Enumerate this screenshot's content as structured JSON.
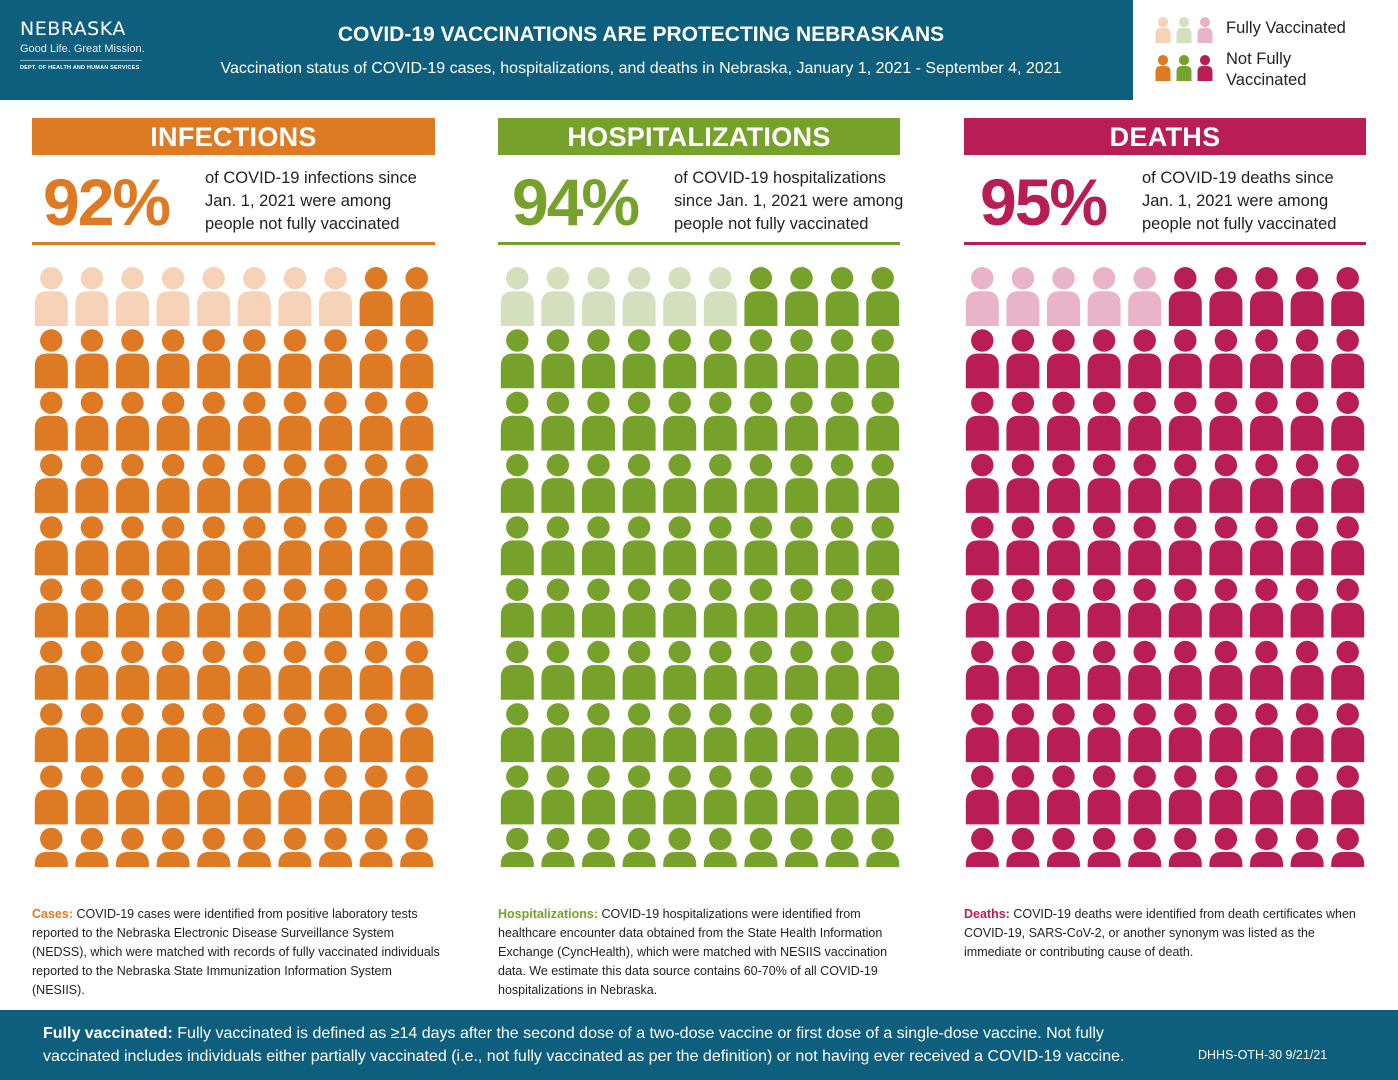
{
  "header": {
    "logo": {
      "name": "NEBRASKA",
      "tagline": "Good Life. Great Mission.",
      "dept": "DEPT. OF HEALTH AND HUMAN SERVICES"
    },
    "title": "COVID-19 VACCINATIONS ARE PROTECTING NEBRASKANS",
    "subtitle": "Vaccination status of COVID-19 cases, hospitalizations, and deaths in Nebraska, January 1, 2021 - September 4, 2021"
  },
  "legend": {
    "fully_label": "Fully Vaccinated",
    "not_fully_label_1": "Not Fully",
    "not_fully_label_2": "Vaccinated",
    "fully_colors": [
      "#f6d3b8",
      "#d4dfbd",
      "#eab4c8"
    ],
    "not_fully_colors": [
      "#dd7a23",
      "#76a22c",
      "#b81e55"
    ]
  },
  "panels": {
    "infections": {
      "title": "INFECTIONS",
      "percent": "92%",
      "desc": [
        "of COVID-19 infections since",
        "Jan. 1, 2021 were among",
        "people not fully vaccinated"
      ],
      "note_lead": "Cases:",
      "note_body": " COVID-19 cases were identified from positive laboratory tests reported to the Nebraska Electronic Disease Surveillance System (NEDSS), which were matched with records of fully vaccinated individuals reported to the Nebraska State Immunization Information System (NESIIS).",
      "color": "#dd7a23",
      "light": "#f6d3b8"
    },
    "hospitalizations": {
      "title": "HOSPITALIZATIONS",
      "percent": "94%",
      "desc": [
        "of COVID-19 hospitalizations",
        "since Jan. 1, 2021 were among",
        "people not fully vaccinated"
      ],
      "note_lead": "Hospitalizations:",
      "note_body": " COVID-19 hospitalizations were identified from healthcare encounter data obtained from the State Health Information Exchange (CyncHealth), which were matched with NESIIS vaccination data. We estimate this data source contains 60-70% of all COVID-19 hospitalizations in Nebraska.",
      "color": "#76a22c",
      "light": "#d4dfbd"
    },
    "deaths": {
      "title": "DEATHS",
      "percent": "95%",
      "desc": [
        "of COVID-19 deaths since",
        "Jan. 1, 2021 were among",
        "people not fully vaccinated"
      ],
      "note_lead": "Deaths:",
      "note_body": " COVID-19 deaths were identified from death certificates when COVID-19, SARS-CoV-2, or another synonym was listed as the immediate or contributing cause of death.",
      "color": "#b81e55",
      "light": "#eab4c8"
    }
  },
  "chart_data": {
    "type": "pictograph",
    "title": "Vaccination status of COVID-19 cases, hospitalizations, and deaths",
    "legend": [
      "Fully Vaccinated",
      "Not Fully Vaccinated"
    ],
    "categories": [
      "Infections",
      "Hospitalizations",
      "Deaths"
    ],
    "rows": 10,
    "cols": 10,
    "series": [
      {
        "name": "Not Fully Vaccinated",
        "values": [
          92,
          94,
          95
        ]
      },
      {
        "name": "Fully Vaccinated",
        "values": [
          8,
          6,
          5
        ]
      }
    ]
  },
  "footer": {
    "lead": "Fully vaccinated:",
    "body": " Fully vaccinated is defined as ≥14 days after the second dose of a two-dose vaccine or first dose of a single-dose vaccine. Not fully vaccinated includes individuals either partially vaccinated (i.e., not fully vaccinated as per the definition) or not having ever received a COVID-19 vaccine.",
    "code": "DHHS-OTH-30  9/21/21"
  }
}
